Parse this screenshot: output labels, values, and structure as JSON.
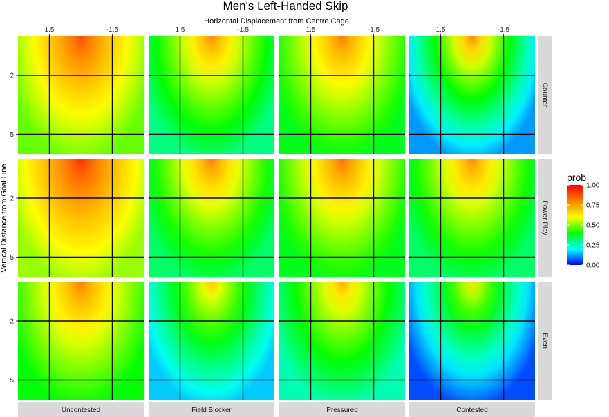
{
  "chart_data": {
    "type": "heatmap",
    "title": "Men's Left-Handed Skip",
    "xlabel": "Horizontal Displacement from Centre Cage",
    "ylabel": "Vertical Distance from Goal Line",
    "x_ticks": [
      "1.5",
      "-1.5"
    ],
    "x_tick_values": [
      1.5,
      -1.5
    ],
    "y_ticks": [
      "2",
      "5"
    ],
    "y_tick_values": [
      2,
      5
    ],
    "xlim": [
      3,
      -3
    ],
    "ylim": [
      0,
      6
    ],
    "x_reversed": true,
    "y_reversed": true,
    "grid": "lines at tick values",
    "columns": [
      "Uncontested",
      "Field Blocker",
      "Pressured",
      "Contested"
    ],
    "rows": [
      "Counter",
      "Power Play",
      "Even"
    ],
    "legend": {
      "title": "prob",
      "position": "right",
      "ticks": [
        "1.00",
        "0.75",
        "0.50",
        "0.25",
        "0.00"
      ],
      "tick_values": [
        1.0,
        0.75,
        0.5,
        0.25,
        0.0
      ],
      "colors": [
        "#ff0000",
        "#ff8000",
        "#ffff00",
        "#00ff00",
        "#00ffff",
        "#0000ff"
      ]
    },
    "peak_probability": {
      "Counter": {
        "Uncontested": 0.88,
        "Field Blocker": 0.78,
        "Pressured": 0.8,
        "Contested": 0.78
      },
      "Power Play": {
        "Uncontested": 0.92,
        "Field Blocker": 0.8,
        "Pressured": 0.82,
        "Contested": 0.78
      },
      "Even": {
        "Uncontested": 0.8,
        "Field Blocker": 0.68,
        "Pressured": 0.72,
        "Contested": 0.64
      }
    },
    "min_probability": {
      "Counter": {
        "Uncontested": 0.48,
        "Field Blocker": 0.3,
        "Pressured": 0.38,
        "Contested": 0.12
      },
      "Power Play": {
        "Uncontested": 0.52,
        "Field Blocker": 0.32,
        "Pressured": 0.38,
        "Contested": 0.32
      },
      "Even": {
        "Uncontested": 0.4,
        "Field Blocker": 0.16,
        "Pressured": 0.26,
        "Contested": 0.06
      }
    }
  }
}
